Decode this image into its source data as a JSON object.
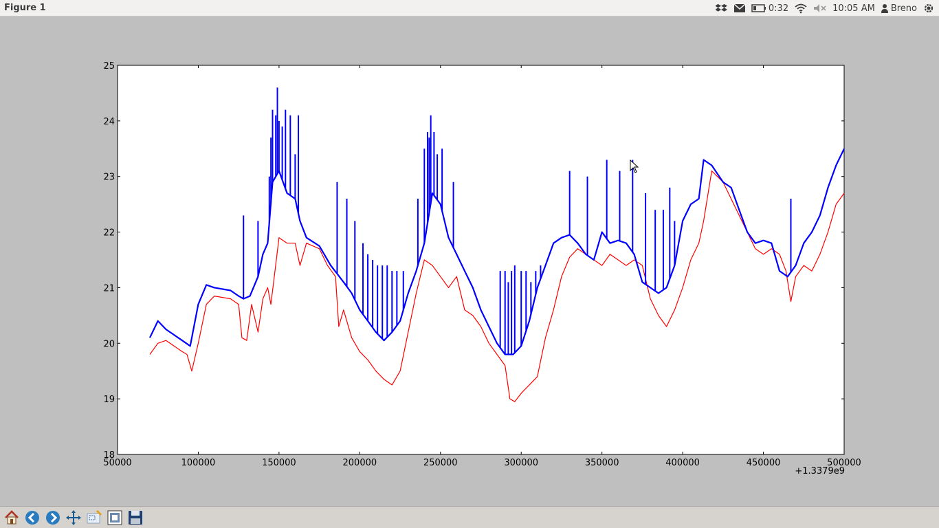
{
  "window": {
    "title": "Figure 1"
  },
  "panel": {
    "battery_time": "0:32",
    "clock": "10:05 AM",
    "user": "Breno",
    "icons": [
      "dropbox-icon",
      "mail-icon",
      "battery-icon",
      "wifi-icon",
      "volume-muted-icon",
      "user-icon",
      "power-gear-icon"
    ]
  },
  "toolbar": {
    "buttons": [
      {
        "name": "home-button",
        "icon": "home-icon"
      },
      {
        "name": "back-button",
        "icon": "arrow-left-icon"
      },
      {
        "name": "forward-button",
        "icon": "arrow-right-icon"
      },
      {
        "name": "pan-button",
        "icon": "move-arrows-icon"
      },
      {
        "name": "zoom-button",
        "icon": "zoom-rect-icon"
      },
      {
        "name": "subplots-button",
        "icon": "subplots-icon"
      },
      {
        "name": "save-button",
        "icon": "floppy-disk-icon"
      }
    ]
  },
  "chart_data": {
    "type": "line",
    "title": "",
    "xlabel": "",
    "ylabel": "",
    "xlim": [
      50000,
      500000
    ],
    "ylim": [
      18,
      25
    ],
    "x_offset_label": "+1.3379e9",
    "x_ticks": [
      "50000",
      "100000",
      "150000",
      "200000",
      "250000",
      "300000",
      "350000",
      "400000",
      "450000",
      "500000"
    ],
    "y_ticks": [
      "18",
      "19",
      "20",
      "21",
      "22",
      "23",
      "24",
      "25"
    ],
    "grid": false,
    "series": [
      {
        "color": "#0000ff",
        "x": [
          70000,
          75000,
          80000,
          90000,
          95000,
          100000,
          105000,
          110000,
          120000,
          125000,
          128000,
          132000,
          137000,
          140000,
          143000,
          146000,
          150000,
          155000,
          160000,
          163000,
          167000,
          175000,
          182000,
          190000,
          195000,
          200000,
          205000,
          210000,
          215000,
          220000,
          225000,
          230000,
          235000,
          240000,
          245000,
          250000,
          255000,
          260000,
          265000,
          270000,
          275000,
          280000,
          285000,
          290000,
          295000,
          300000,
          305000,
          310000,
          315000,
          320000,
          325000,
          330000,
          335000,
          340000,
          345000,
          350000,
          355000,
          360000,
          365000,
          370000,
          375000,
          380000,
          385000,
          390000,
          395000,
          400000,
          405000,
          410000,
          413000,
          418000,
          425000,
          430000,
          435000,
          440000,
          445000,
          450000,
          455000,
          460000,
          465000,
          470000,
          475000,
          480000,
          485000,
          490000,
          495000,
          500000
        ],
        "y": [
          20.1,
          20.4,
          20.25,
          20.05,
          19.95,
          20.7,
          21.05,
          21.0,
          20.95,
          20.85,
          20.8,
          20.85,
          21.2,
          21.6,
          21.8,
          22.9,
          23.1,
          22.7,
          22.6,
          22.2,
          21.9,
          21.75,
          21.4,
          21.1,
          20.9,
          20.6,
          20.4,
          20.2,
          20.05,
          20.2,
          20.4,
          20.9,
          21.3,
          21.8,
          22.7,
          22.5,
          21.9,
          21.6,
          21.3,
          21.0,
          20.6,
          20.3,
          20.0,
          19.8,
          19.8,
          19.95,
          20.4,
          21.0,
          21.4,
          21.8,
          21.9,
          21.95,
          21.8,
          21.6,
          21.5,
          22.0,
          21.8,
          21.85,
          21.8,
          21.6,
          21.1,
          21.0,
          20.9,
          21.0,
          21.4,
          22.2,
          22.5,
          22.6,
          23.3,
          23.2,
          22.9,
          22.8,
          22.4,
          22.0,
          21.8,
          21.85,
          21.8,
          21.3,
          21.2,
          21.4,
          21.8,
          22.0,
          22.3,
          22.8,
          23.2,
          23.5
        ]
      },
      {
        "color": "#ff0000",
        "x": [
          70000,
          75000,
          80000,
          90000,
          93000,
          96000,
          100000,
          105000,
          110000,
          120000,
          125000,
          127000,
          130000,
          133000,
          137000,
          140000,
          143000,
          145000,
          150000,
          155000,
          160000,
          163000,
          167000,
          175000,
          180000,
          185000,
          187000,
          190000,
          195000,
          200000,
          205000,
          210000,
          215000,
          220000,
          225000,
          230000,
          235000,
          240000,
          245000,
          250000,
          255000,
          260000,
          265000,
          270000,
          275000,
          280000,
          285000,
          290000,
          293000,
          296000,
          300000,
          305000,
          310000,
          315000,
          320000,
          325000,
          330000,
          335000,
          340000,
          345000,
          350000,
          355000,
          360000,
          365000,
          370000,
          375000,
          380000,
          385000,
          390000,
          395000,
          400000,
          405000,
          410000,
          413000,
          418000,
          425000,
          430000,
          435000,
          440000,
          445000,
          450000,
          455000,
          460000,
          464000,
          467000,
          470000,
          475000,
          480000,
          485000,
          490000,
          495000,
          500000
        ],
        "y": [
          19.8,
          20.0,
          20.05,
          19.85,
          19.8,
          19.5,
          20.0,
          20.7,
          20.85,
          20.8,
          20.7,
          20.1,
          20.05,
          20.7,
          20.2,
          20.8,
          21.0,
          20.7,
          21.9,
          21.8,
          21.8,
          21.4,
          21.8,
          21.7,
          21.4,
          21.2,
          20.3,
          20.6,
          20.1,
          19.85,
          19.7,
          19.5,
          19.35,
          19.25,
          19.5,
          20.2,
          20.9,
          21.5,
          21.4,
          21.2,
          21.0,
          21.2,
          20.6,
          20.5,
          20.3,
          20.0,
          19.8,
          19.6,
          19.0,
          18.95,
          19.1,
          19.25,
          19.4,
          20.1,
          20.6,
          21.2,
          21.55,
          21.7,
          21.6,
          21.5,
          21.4,
          21.6,
          21.5,
          21.4,
          21.5,
          21.4,
          20.8,
          20.5,
          20.3,
          20.6,
          21.0,
          21.5,
          21.8,
          22.2,
          23.1,
          22.9,
          22.6,
          22.3,
          22.0,
          21.7,
          21.6,
          21.7,
          21.6,
          21.3,
          20.75,
          21.2,
          21.4,
          21.3,
          21.6,
          22.0,
          22.5,
          22.7
        ]
      }
    ],
    "spikes": {
      "color": "#0000ff",
      "items": [
        [
          128000,
          22.3
        ],
        [
          137000,
          22.2
        ],
        [
          144000,
          23.0
        ],
        [
          145000,
          23.7
        ],
        [
          146000,
          24.2
        ],
        [
          148000,
          24.1
        ],
        [
          149000,
          24.6
        ],
        [
          150000,
          24.0
        ],
        [
          152000,
          23.9
        ],
        [
          154000,
          24.2
        ],
        [
          157000,
          24.1
        ],
        [
          160000,
          23.4
        ],
        [
          162000,
          24.1
        ],
        [
          186000,
          22.9
        ],
        [
          192000,
          22.6
        ],
        [
          197000,
          22.2
        ],
        [
          202000,
          21.8
        ],
        [
          205000,
          21.6
        ],
        [
          208000,
          21.5
        ],
        [
          211000,
          21.4
        ],
        [
          214000,
          21.4
        ],
        [
          217000,
          21.4
        ],
        [
          220000,
          21.3
        ],
        [
          223000,
          21.3
        ],
        [
          227000,
          21.3
        ],
        [
          236000,
          22.6
        ],
        [
          240000,
          23.5
        ],
        [
          242000,
          23.8
        ],
        [
          243000,
          23.7
        ],
        [
          244000,
          24.1
        ],
        [
          246000,
          23.8
        ],
        [
          248000,
          23.4
        ],
        [
          251000,
          23.5
        ],
        [
          258000,
          22.9
        ],
        [
          287000,
          21.3
        ],
        [
          290000,
          21.3
        ],
        [
          292000,
          21.1
        ],
        [
          294000,
          21.3
        ],
        [
          296000,
          21.4
        ],
        [
          300000,
          21.3
        ],
        [
          303000,
          21.3
        ],
        [
          306000,
          21.1
        ],
        [
          309000,
          21.3
        ],
        [
          312000,
          21.4
        ],
        [
          330000,
          23.1
        ],
        [
          341000,
          23.0
        ],
        [
          353000,
          23.3
        ],
        [
          361000,
          23.1
        ],
        [
          369000,
          23.3
        ],
        [
          377000,
          22.7
        ],
        [
          383000,
          22.4
        ],
        [
          388000,
          22.4
        ],
        [
          392000,
          22.8
        ],
        [
          395000,
          22.2
        ],
        [
          467000,
          22.6
        ]
      ]
    }
  }
}
